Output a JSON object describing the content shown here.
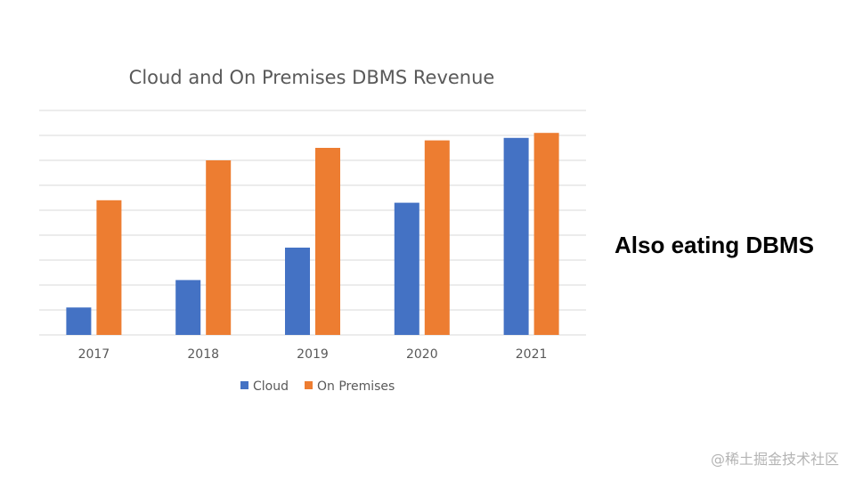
{
  "slide": {
    "caption": "Also eating DBMS",
    "watermark": "@稀土掘金技术社区"
  },
  "colors": {
    "cloud": "#4472c4",
    "on_premises": "#ed7d31",
    "gridline": "#d9d9d9",
    "text": "#595959"
  },
  "chart_data": {
    "type": "bar",
    "title": "Cloud and On Premises DBMS Revenue",
    "xlabel": "",
    "ylabel": "",
    "categories": [
      "2017",
      "2018",
      "2019",
      "2020",
      "2021"
    ],
    "series": [
      {
        "name": "Cloud",
        "color": "#4472c4",
        "values": [
          1.1,
          2.2,
          3.5,
          5.3,
          7.9
        ]
      },
      {
        "name": "On Premises",
        "color": "#ed7d31",
        "values": [
          5.4,
          7.0,
          7.5,
          7.8,
          8.1
        ]
      }
    ],
    "ylim": [
      0,
      9
    ],
    "gridlines": 9,
    "grid": true,
    "y_tick_labels_shown": false,
    "legend": "bottom"
  }
}
